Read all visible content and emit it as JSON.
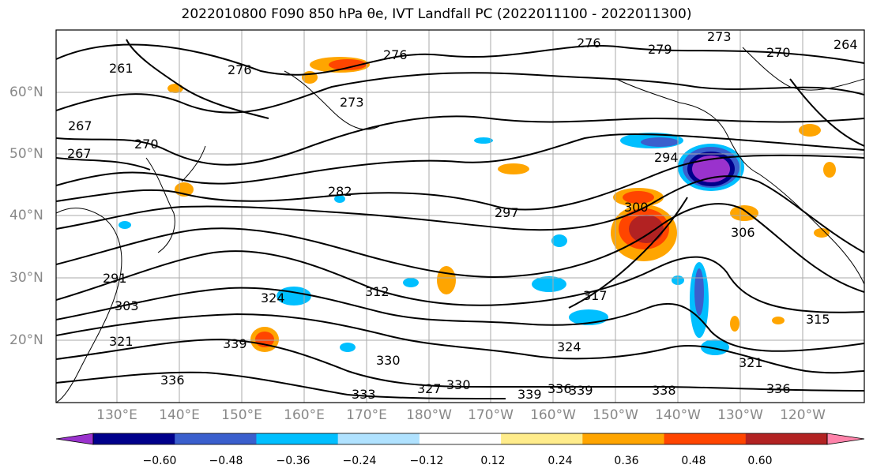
{
  "title": "2022010800 F090 850 hPa θe, IVT Landfall PC (2022011100 - 2022011300)",
  "map": {
    "projection": "PlateCarree",
    "region": "North Pacific",
    "lon_range": "120°E – 110°W",
    "lat_range": "10°N – 70°N",
    "gridlines": true,
    "coastlines": true,
    "filled_field": "IVT Landfall PC",
    "contour_field": "850 hPa theta-e (K)",
    "contour_color": "#000000"
  },
  "lat_labels": [
    "60°N",
    "50°N",
    "40°N",
    "30°N",
    "20°N"
  ],
  "lon_labels": [
    "130°E",
    "140°E",
    "150°E",
    "160°E",
    "170°E",
    "180°W",
    "170°W",
    "160°W",
    "150°W",
    "140°W",
    "130°W",
    "120°W"
  ],
  "contour_labels": [
    "261",
    "276",
    "270",
    "267",
    "267",
    "273",
    "276",
    "279",
    "273",
    "276",
    "270",
    "264",
    "282",
    "297",
    "300",
    "294",
    "306",
    "312",
    "315",
    "291",
    "303",
    "324",
    "321",
    "336",
    "330",
    "339",
    "333",
    "327",
    "330",
    "339",
    "336",
    "339",
    "338",
    "336",
    "321",
    "324",
    "317"
  ],
  "colorbar": {
    "orientation": "horizontal",
    "extend": "both",
    "tick_labels": [
      "−0.60",
      "−0.48",
      "−0.36",
      "−0.24",
      "−0.12",
      "0.12",
      "0.24",
      "0.36",
      "0.48",
      "0.60"
    ],
    "colors": [
      "#9a32cd",
      "#00008b",
      "#3a5fcd",
      "#00bfff",
      "#b0e2ff",
      "#ffffff",
      "#ffec8b",
      "#ffa500",
      "#ff4500",
      "#b22222",
      "#ff83aa"
    ]
  }
}
